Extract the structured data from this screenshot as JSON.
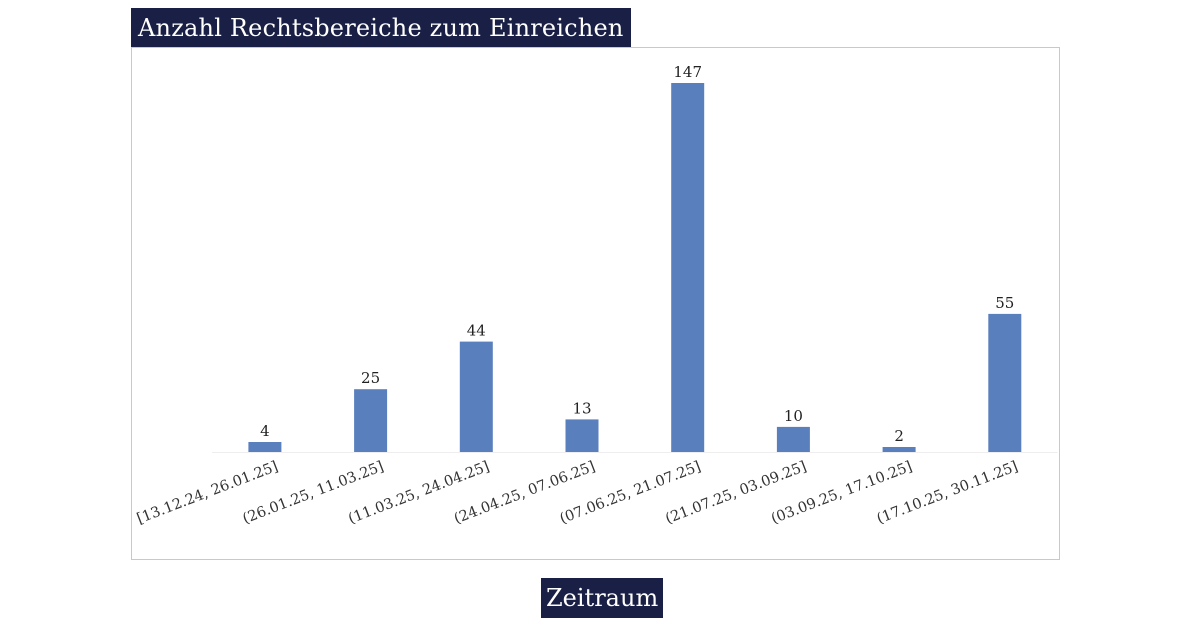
{
  "chart_data": {
    "type": "bar",
    "title": "Anzahl Rechtsbereiche zum Einreichen",
    "xlabel": "Zeitraum",
    "ylabel": "",
    "categories": [
      "[13.12.24, 26.01.25]",
      "(26.01.25, 11.03.25]",
      "(11.03.25, 24.04.25]",
      "(24.04.25, 07.06.25]",
      "(07.06.25, 21.07.25]",
      "(21.07.25, 03.09.25]",
      "(03.09.25, 17.10.25]",
      "(17.10.25, 30.11.25]"
    ],
    "values": [
      4,
      25,
      44,
      13,
      147,
      10,
      2,
      55
    ],
    "data_labels": [
      "4",
      "25",
      "44",
      "13",
      "147",
      "10",
      "2",
      "55"
    ],
    "ylim": [
      0,
      147
    ],
    "grid": false,
    "legend": "none",
    "bar_color": "#5a7fbd",
    "title_bg_color": "#1a1f45"
  }
}
